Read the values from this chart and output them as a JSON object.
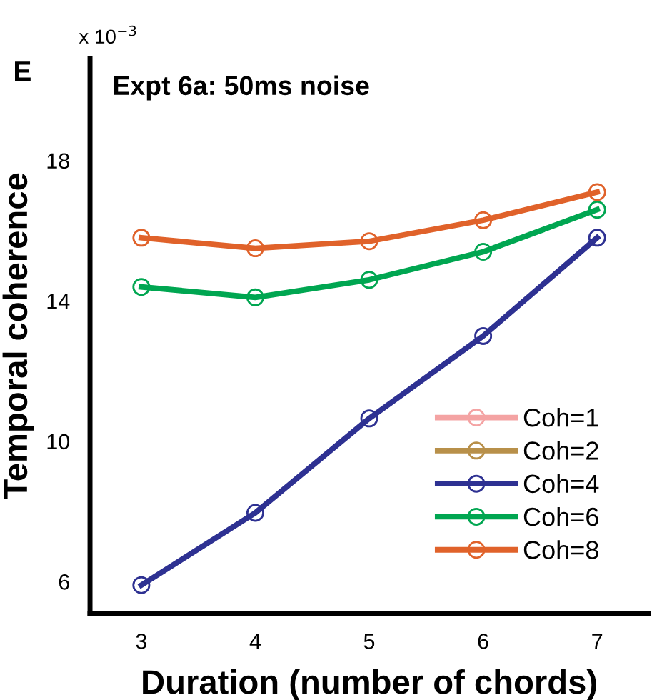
{
  "chart_data": {
    "type": "line",
    "title": "Expt 6a: 50ms noise",
    "xlabel": "Duration (number of chords)",
    "ylabel": "Temporal coherence",
    "annotations": [
      "E",
      "x 10$^{−3}$"
    ],
    "x": [
      3,
      4,
      5,
      6,
      7
    ],
    "series": [
      {
        "name": "Coh=1",
        "color": "#f4a3a3",
        "values": [
          null,
          null,
          null,
          null,
          null
        ]
      },
      {
        "name": "Coh=2",
        "color": "#b8904a",
        "values": [
          null,
          null,
          null,
          null,
          null
        ]
      },
      {
        "name": "Coh=4",
        "color": "#2e3192",
        "values": [
          5.9,
          7.96,
          10.65,
          13.0,
          15.8
        ]
      },
      {
        "name": "Coh=6",
        "color": "#00a651",
        "values": [
          14.4,
          14.1,
          14.6,
          15.4,
          16.6
        ]
      },
      {
        "name": "Coh=8",
        "color": "#e0622a",
        "values": [
          15.8,
          15.5,
          15.7,
          16.3,
          17.1
        ]
      }
    ],
    "xlim": [
      2.55,
      7.45
    ],
    "ylim": [
      5.1,
      20.9
    ],
    "xticks": [
      3,
      4,
      5,
      6,
      7
    ],
    "yticks": [
      6,
      10,
      14,
      18
    ],
    "grid": false,
    "legend": "bottom right",
    "marker": "circle",
    "line_style": "solid"
  }
}
